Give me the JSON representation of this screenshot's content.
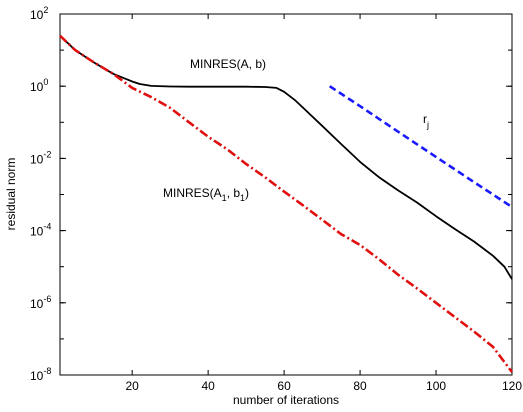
{
  "chart_data": {
    "type": "line",
    "xlabel": "number of iterations",
    "ylabel": "residual norm",
    "xlim": [
      1,
      120
    ],
    "ylim": [
      1e-08,
      100
    ],
    "yscale": "log",
    "grid": false,
    "x_ticks": [
      20,
      40,
      60,
      80,
      100,
      120
    ],
    "y_ticks": [
      {
        "value": 100,
        "base": "10",
        "exp": "2"
      },
      {
        "value": 1,
        "base": "10",
        "exp": "0"
      },
      {
        "value": 0.01,
        "base": "10",
        "exp": "-2"
      },
      {
        "value": 0.0001,
        "base": "10",
        "exp": "-4"
      },
      {
        "value": 1e-06,
        "base": "10",
        "exp": "-6"
      },
      {
        "value": 1e-08,
        "base": "10",
        "exp": "-8"
      }
    ],
    "annotations": {
      "minres": "MINRES(A, b)",
      "minres1_parts": [
        "MINRES(A",
        "1",
        ", b",
        "1",
        ")"
      ],
      "rj_parts": [
        "r",
        "j"
      ]
    },
    "series": [
      {
        "color": "#000000",
        "style": "solid",
        "x": [
          1,
          5,
          10,
          15,
          20,
          22,
          25,
          30,
          35,
          40,
          45,
          50,
          55,
          58,
          60,
          63,
          66,
          70,
          75,
          80,
          85,
          90,
          95,
          100,
          105,
          110,
          115,
          118,
          120
        ],
        "y": [
          25,
          10,
          4.5,
          2.2,
          1.35,
          1.15,
          1.02,
          0.98,
          0.97,
          0.97,
          0.97,
          0.97,
          0.95,
          0.9,
          0.7,
          0.4,
          0.2,
          0.08,
          0.025,
          0.008,
          0.003,
          0.0013,
          0.0006,
          0.00025,
          0.00011,
          5e-05,
          2e-05,
          1e-05,
          4.5e-06
        ]
      },
      {
        "color": "#e01010",
        "style": "dashdot",
        "x": [
          1,
          5,
          10,
          15,
          20,
          25,
          30,
          35,
          40,
          45,
          50,
          55,
          60,
          65,
          70,
          75,
          80,
          85,
          90,
          95,
          100,
          105,
          110,
          115,
          120
        ],
        "y": [
          25,
          10,
          4.5,
          2.2,
          0.9,
          0.5,
          0.25,
          0.1,
          0.04,
          0.018,
          0.007,
          0.003,
          0.0012,
          0.0005,
          0.0002,
          8e-05,
          4e-05,
          1.6e-05,
          6e-06,
          2.5e-06,
          1e-06,
          4e-07,
          1.6e-07,
          6e-08,
          1.2e-08
        ]
      },
      {
        "color": "#1a1aff",
        "style": "dashed",
        "x": [
          72,
          80,
          90,
          100,
          110,
          120
        ],
        "y": [
          1,
          0.28,
          0.055,
          0.011,
          0.0022,
          0.00045
        ]
      }
    ]
  }
}
